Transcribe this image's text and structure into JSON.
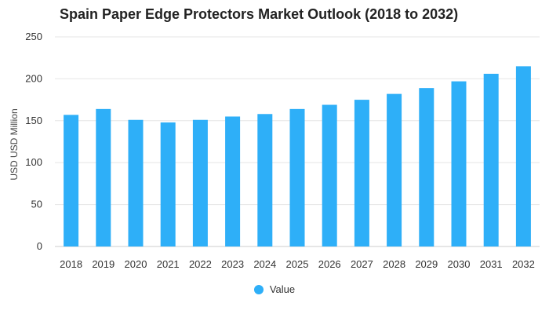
{
  "chart_data": {
    "type": "bar",
    "title": "Spain Paper Edge Protectors Market Outlook (2018 to 2032)",
    "xlabel": "",
    "ylabel": "USD USD Million",
    "categories": [
      "2018",
      "2019",
      "2020",
      "2021",
      "2022",
      "2023",
      "2024",
      "2025",
      "2026",
      "2027",
      "2028",
      "2029",
      "2030",
      "2031",
      "2032"
    ],
    "series": [
      {
        "name": "Value",
        "values": [
          157,
          164,
          151,
          148,
          151,
          155,
          158,
          164,
          169,
          175,
          182,
          189,
          197,
          206,
          215
        ],
        "color": "#2EAFF8"
      }
    ],
    "ylim": [
      0,
      250
    ],
    "yticks": [
      0,
      50,
      100,
      150,
      200,
      250
    ],
    "grid": true,
    "legend_position": "bottom-center"
  }
}
